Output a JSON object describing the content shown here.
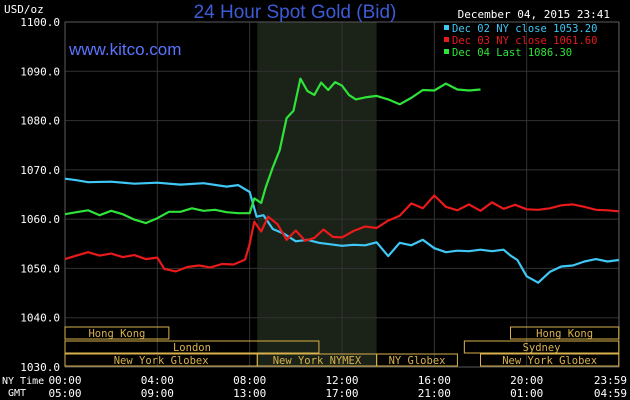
{
  "header": {
    "unit": "USD/oz",
    "title": "24 Hour Spot Gold (Bid)",
    "timestamp": "December 04, 2015 23:41",
    "watermark": "www.kitco.com"
  },
  "colors": {
    "background": "#000000",
    "title": "#3d5bd6",
    "watermark": "#5a74ff",
    "grid": "#333333",
    "axis_text": "#ffffff",
    "shade": "#1b2218",
    "session": "#d9b24c",
    "dec02": "#3fc7f5",
    "dec03": "#e81a1a",
    "dec04": "#2ee33a"
  },
  "legend": [
    {
      "label": "Dec 02 NY close 1053.20",
      "color": "#3fc7f5"
    },
    {
      "label": "Dec 03 NY close 1061.60",
      "color": "#e81a1a"
    },
    {
      "label": "Dec 04 Last 1086.30",
      "color": "#2ee33a"
    }
  ],
  "axis": {
    "ny_label": "NY Time",
    "gmt_label": "GMT"
  },
  "chart_data": {
    "type": "line",
    "title": "24 Hour Spot Gold (Bid)",
    "ylabel": "USD/oz",
    "ylim": [
      1030,
      1100
    ],
    "xlim": [
      0,
      24
    ],
    "grid": true,
    "legend_position": "top-right",
    "yticks": [
      "1030.0",
      "1040.0",
      "1050.0",
      "1060.0",
      "1070.0",
      "1080.0",
      "1090.0",
      "1100.0"
    ],
    "xticks_ny": [
      "00:00",
      "04:00",
      "08:00",
      "12:00",
      "16:00",
      "20:00",
      "23:59"
    ],
    "xticks_gmt": [
      "05:00",
      "09:00",
      "13:00",
      "17:00",
      "21:00",
      "01:00",
      "04:59"
    ],
    "shaded_ny_hours": [
      8.33,
      13.5
    ],
    "sessions": [
      {
        "label": "Hong Kong",
        "row": 0,
        "ranges": [
          [
            0,
            4.5
          ],
          [
            19.3,
            23.99
          ]
        ]
      },
      {
        "label": "London",
        "row": 1,
        "ranges": [
          [
            0,
            11
          ]
        ]
      },
      {
        "label": "Sydney",
        "row": 1,
        "ranges": [
          [
            17.3,
            23.99
          ]
        ]
      },
      {
        "label": "New York Globex",
        "row": 2,
        "ranges": [
          [
            0,
            8.33
          ],
          [
            18,
            23.99
          ]
        ]
      },
      {
        "label": "New York NYMEX",
        "row": 2,
        "ranges": [
          [
            8.33,
            13.5
          ]
        ]
      },
      {
        "label": "NY Globex",
        "row": 2,
        "ranges": [
          [
            13.5,
            17
          ]
        ]
      }
    ],
    "series": [
      {
        "name": "Dec 02 NY close 1053.20",
        "color": "#3fc7f5",
        "x": [
          0,
          0.5,
          1,
          2,
          3,
          4,
          5,
          6,
          7,
          7.5,
          8,
          8.3,
          8.6,
          9,
          9.5,
          10,
          10.5,
          11,
          11.5,
          12,
          12.5,
          13,
          13.5,
          14,
          14.5,
          15,
          15.5,
          16,
          16.5,
          17,
          17.5,
          18,
          18.5,
          19,
          19.3,
          19.6,
          20,
          20.5,
          21,
          21.5,
          22,
          22.5,
          23,
          23.5,
          23.99
        ],
        "y": [
          1068.2,
          1067.9,
          1067.5,
          1067.6,
          1067.2,
          1067.4,
          1067.0,
          1067.3,
          1066.6,
          1066.9,
          1065.5,
          1060.5,
          1060.8,
          1058.0,
          1057.0,
          1055.5,
          1055.8,
          1055.2,
          1054.9,
          1054.6,
          1054.8,
          1054.7,
          1055.3,
          1052.5,
          1055.2,
          1054.7,
          1055.8,
          1054.1,
          1053.3,
          1053.6,
          1053.5,
          1053.8,
          1053.5,
          1053.8,
          1052.6,
          1051.7,
          1048.4,
          1047.1,
          1049.3,
          1050.4,
          1050.6,
          1051.4,
          1051.9,
          1051.4,
          1051.7
        ]
      },
      {
        "name": "Dec 03 NY close 1061.60",
        "color": "#e81a1a",
        "x": [
          0,
          0.5,
          1,
          1.5,
          2,
          2.5,
          3,
          3.5,
          4,
          4.3,
          4.8,
          5.3,
          5.8,
          6.3,
          6.8,
          7.3,
          7.8,
          8.0,
          8.2,
          8.5,
          8.8,
          9.2,
          9.6,
          10.0,
          10.4,
          10.8,
          11.2,
          11.6,
          12.0,
          12.5,
          13,
          13.5,
          14,
          14.5,
          15,
          15.5,
          16,
          16.5,
          17,
          17.5,
          18,
          18.5,
          19,
          19.5,
          20,
          20.5,
          21,
          21.5,
          22,
          22.5,
          23,
          23.5,
          23.99
        ],
        "y": [
          1051.9,
          1052.6,
          1053.3,
          1052.6,
          1053.0,
          1052.3,
          1052.7,
          1051.9,
          1052.2,
          1049.9,
          1049.4,
          1050.3,
          1050.6,
          1050.2,
          1050.9,
          1050.8,
          1051.8,
          1055.0,
          1059.5,
          1057.5,
          1060.5,
          1059.0,
          1055.8,
          1057.7,
          1055.6,
          1056.2,
          1057.9,
          1056.4,
          1056.3,
          1057.6,
          1058.5,
          1058.2,
          1059.7,
          1060.7,
          1063.2,
          1062.2,
          1064.8,
          1062.5,
          1061.8,
          1063.0,
          1061.7,
          1063.4,
          1062.1,
          1062.9,
          1062.0,
          1061.9,
          1062.2,
          1062.8,
          1063.0,
          1062.5,
          1061.9,
          1061.8,
          1061.6
        ]
      },
      {
        "name": "Dec 04 Last 1086.30",
        "color": "#2ee33a",
        "x": [
          0,
          0.5,
          1,
          1.5,
          2,
          2.5,
          3,
          3.5,
          4,
          4.5,
          5,
          5.5,
          6,
          6.5,
          7,
          7.5,
          8,
          8.2,
          8.5,
          8.7,
          9.0,
          9.3,
          9.6,
          9.9,
          10.2,
          10.5,
          10.8,
          11.1,
          11.4,
          11.7,
          12.0,
          12.3,
          12.6,
          13,
          13.5,
          14,
          14.5,
          15,
          15.5,
          16,
          16.5,
          17,
          17.5,
          18
        ],
        "y": [
          1061.0,
          1061.4,
          1061.8,
          1060.8,
          1061.7,
          1061.0,
          1059.9,
          1059.2,
          1060.2,
          1061.5,
          1061.5,
          1062.2,
          1061.7,
          1061.9,
          1061.4,
          1061.2,
          1061.2,
          1064.2,
          1063.3,
          1066.5,
          1070.5,
          1074.0,
          1080.5,
          1082.0,
          1088.5,
          1086.0,
          1085.2,
          1087.7,
          1086.2,
          1087.8,
          1087.1,
          1085.2,
          1084.3,
          1084.7,
          1085.0,
          1084.3,
          1083.3,
          1084.6,
          1086.2,
          1086.1,
          1087.5,
          1086.3,
          1086.1,
          1086.3
        ]
      }
    ]
  }
}
